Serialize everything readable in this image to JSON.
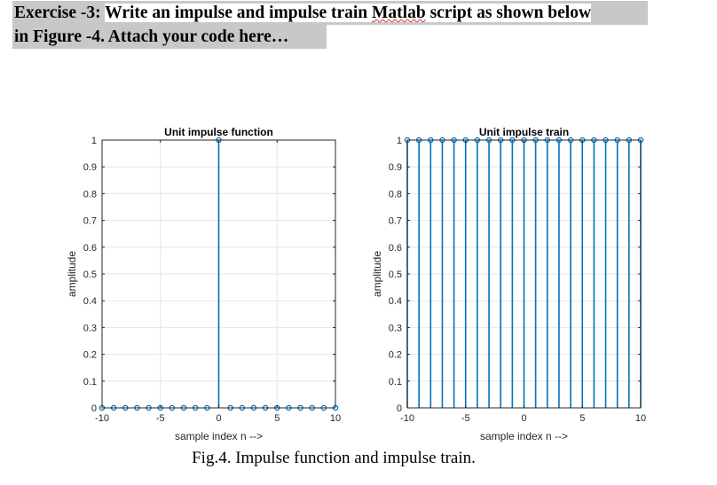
{
  "heading": {
    "prefix": "Exercise -3: ",
    "line1_rest_a": "Write an impulse and impulse train ",
    "line1_rest_b": "Matlab",
    "line1_rest_c": " script as shown below",
    "line2": "in Figure -4.  Attach your code here…"
  },
  "caption": "Fig.4. Impulse function and impulse train.",
  "colors": {
    "stem": "#0072bd",
    "grid": "#e6e6e6",
    "axis": "#262626",
    "heading_highlight": "#c8c8c8"
  },
  "chart_data": [
    {
      "type": "stem",
      "title": "Unit impulse function",
      "xlabel": "sample index n -->",
      "ylabel": "amplitude",
      "xlim": [
        -10,
        10
      ],
      "ylim": [
        0,
        1
      ],
      "grid": true,
      "xticks": [
        -10,
        -5,
        0,
        5,
        10
      ],
      "yticks": [
        0,
        0.1,
        0.2,
        0.3,
        0.4,
        0.5,
        0.6,
        0.7,
        0.8,
        0.9,
        1
      ],
      "ytick_labels": [
        "0",
        "0.1",
        "0.2",
        "0.3",
        "0.4",
        "0.5",
        "0.6",
        "0.7",
        "0.8",
        "0.9",
        "1"
      ],
      "x": [
        -10,
        -9,
        -8,
        -7,
        -6,
        -5,
        -4,
        -3,
        -2,
        -1,
        0,
        1,
        2,
        3,
        4,
        5,
        6,
        7,
        8,
        9,
        10
      ],
      "y": [
        0,
        0,
        0,
        0,
        0,
        0,
        0,
        0,
        0,
        0,
        1,
        0,
        0,
        0,
        0,
        0,
        0,
        0,
        0,
        0,
        0
      ]
    },
    {
      "type": "stem",
      "title": "Unit impulse train",
      "xlabel": "sample index n -->",
      "ylabel": "amplitude",
      "xlim": [
        -10,
        10
      ],
      "ylim": [
        0,
        1
      ],
      "grid": true,
      "xticks": [
        -10,
        -5,
        0,
        5,
        10
      ],
      "yticks": [
        0,
        0.1,
        0.2,
        0.3,
        0.4,
        0.5,
        0.6,
        0.7,
        0.8,
        0.9,
        1
      ],
      "ytick_labels": [
        "0",
        "0.1",
        "0.2",
        "0.3",
        "0.4",
        "0.5",
        "0.6",
        "0.7",
        "0.8",
        "0.9",
        "1"
      ],
      "x": [
        -10,
        -9,
        -8,
        -7,
        -6,
        -5,
        -4,
        -3,
        -2,
        -1,
        0,
        1,
        2,
        3,
        4,
        5,
        6,
        7,
        8,
        9,
        10
      ],
      "y": [
        1,
        1,
        1,
        1,
        1,
        1,
        1,
        1,
        1,
        1,
        1,
        1,
        1,
        1,
        1,
        1,
        1,
        1,
        1,
        1,
        1
      ]
    }
  ]
}
